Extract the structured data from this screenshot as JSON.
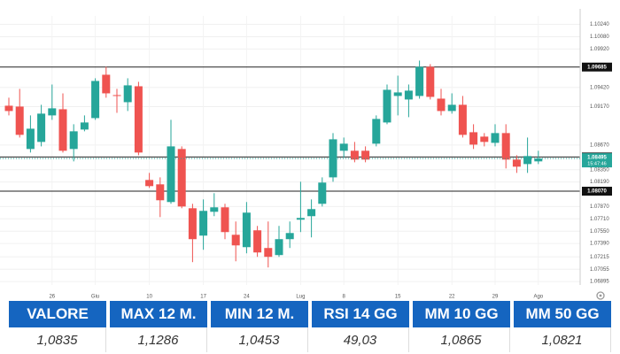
{
  "chart_data": {
    "type": "candlestick",
    "categories": [
      null,
      null,
      null,
      null,
      "26",
      null,
      null,
      null,
      "Giu",
      null,
      null,
      null,
      null,
      "10",
      null,
      null,
      null,
      null,
      "17",
      null,
      null,
      null,
      "24",
      null,
      null,
      null,
      null,
      "Lug",
      null,
      null,
      null,
      "8",
      null,
      null,
      null,
      null,
      "15",
      null,
      null,
      null,
      null,
      "22",
      null,
      null,
      null,
      "29",
      null,
      null,
      null,
      "Ago"
    ],
    "open": [
      1.09182,
      1.09171,
      1.08619,
      1.08711,
      1.09056,
      1.09136,
      1.08619,
      1.08872,
      1.09021,
      1.09585,
      1.0932,
      1.09228,
      1.09435,
      1.08216,
      1.08159,
      1.07929,
      1.08619,
      1.07848,
      1.07492,
      1.07802,
      1.0786,
      1.07503,
      1.07342,
      1.07561,
      1.07331,
      1.07239,
      1.07446,
      1.07699,
      1.07745,
      1.07906,
      1.0825,
      1.08596,
      1.08596,
      1.08596,
      1.08688,
      1.08964,
      1.09309,
      1.09263,
      1.09309,
      1.09688,
      1.09274,
      1.09113,
      1.09194,
      1.08837,
      1.0878,
      1.08699,
      1.08826,
      1.08481,
      1.08423,
      1.08458
    ],
    "high": [
      1.09286,
      1.09401,
      1.09056,
      1.09194,
      1.09458,
      1.09343,
      1.08941,
      1.09056,
      1.09539,
      1.09688,
      1.09401,
      1.09539,
      1.09493,
      1.08308,
      1.0825,
      1.08998,
      1.08653,
      1.07906,
      1.07963,
      1.08044,
      1.07906,
      1.07676,
      1.07929,
      1.07618,
      1.07676,
      1.07618,
      1.07676,
      1.08193,
      1.07963,
      1.0825,
      1.08826,
      1.08768,
      1.08711,
      1.08653,
      1.09056,
      1.09458,
      1.09573,
      1.09458,
      1.09769,
      1.09723,
      1.09401,
      1.09343,
      1.09309,
      1.08941,
      1.08826,
      1.08941,
      1.08941,
      1.08538,
      1.08768,
      1.08596
    ],
    "low": [
      1.09056,
      1.08768,
      1.08573,
      1.08653,
      1.08998,
      1.08573,
      1.08458,
      1.08849,
      1.08998,
      1.09286,
      1.0909,
      1.09113,
      1.08538,
      1.08113,
      1.07733,
      1.07906,
      1.07848,
      1.07147,
      1.07308,
      1.07745,
      1.07446,
      1.07158,
      1.07262,
      1.07216,
      1.07078,
      1.07216,
      1.07331,
      1.07538,
      1.07469,
      1.07871,
      1.08193,
      1.08504,
      1.08446,
      1.08446,
      1.08653,
      1.08941,
      1.09056,
      1.09033,
      1.09274,
      1.09263,
      1.09056,
      1.09079,
      1.08768,
      1.08619,
      1.08653,
      1.08653,
      1.08366,
      1.08308,
      1.08308,
      1.08423
    ],
    "close": [
      1.09113,
      1.08803,
      1.08883,
      1.09079,
      1.09148,
      1.08596,
      1.08849,
      1.08964,
      1.09504,
      1.09343,
      1.09309,
      1.09447,
      1.08573,
      1.08136,
      1.07952,
      1.08653,
      1.07871,
      1.07446,
      1.07814,
      1.0786,
      1.07538,
      1.07365,
      1.07791,
      1.07273,
      1.07216,
      1.07446,
      1.07526,
      1.07722,
      1.07837,
      1.08182,
      1.08745,
      1.08688,
      1.08481,
      1.08481,
      1.0901,
      1.09389,
      1.09355,
      1.09378,
      1.09688,
      1.09297,
      1.09113,
      1.09194,
      1.08803,
      1.08676,
      1.08711,
      1.08826,
      1.08481,
      1.08389,
      1.08527,
      1.08495
    ],
    "up_color": "#26a69a",
    "down_color": "#ef5350",
    "ylim": [
      1.0685,
      1.1035
    ],
    "yticks": [
      {
        "value": 1.1024,
        "label": "1.10240"
      },
      {
        "value": 1.1008,
        "label": "1.10080"
      },
      {
        "value": 1.0992,
        "label": "1.09920"
      },
      {
        "value": 1.0942,
        "label": "1.09420"
      },
      {
        "value": 1.0917,
        "label": "1.09170"
      },
      {
        "value": 1.0867,
        "label": "1.08670"
      },
      {
        "value": 1.0835,
        "label": "1.08350"
      },
      {
        "value": 1.0819,
        "label": "1.08190"
      },
      {
        "value": 1.0787,
        "label": "1.07870"
      },
      {
        "value": 1.0771,
        "label": "1.07710"
      },
      {
        "value": 1.0755,
        "label": "1.07550"
      },
      {
        "value": 1.0739,
        "label": "1.07390"
      },
      {
        "value": 1.07215,
        "label": "1.07215"
      },
      {
        "value": 1.07055,
        "label": "1.07055"
      },
      {
        "value": 1.06895,
        "label": "1.06895"
      }
    ],
    "levels": [
      {
        "value": 1.09685,
        "label": "1.09685"
      },
      {
        "value": 1.08515,
        "label": "1.08515"
      },
      {
        "value": 1.0807,
        "label": "1.08070"
      }
    ],
    "last_price": {
      "value": 1.08495,
      "label": "1.08495",
      "time": "15:47:46"
    },
    "grid": true
  },
  "table": {
    "headers": [
      "VALORE",
      "MAX 12 M.",
      "MIN 12 M.",
      "RSI 14 GG",
      "MM 10 GG",
      "MM 50 GG"
    ],
    "values": [
      "1,0835",
      "1,1286",
      "1,0453",
      "49,03",
      "1,0865",
      "1,0821"
    ]
  }
}
